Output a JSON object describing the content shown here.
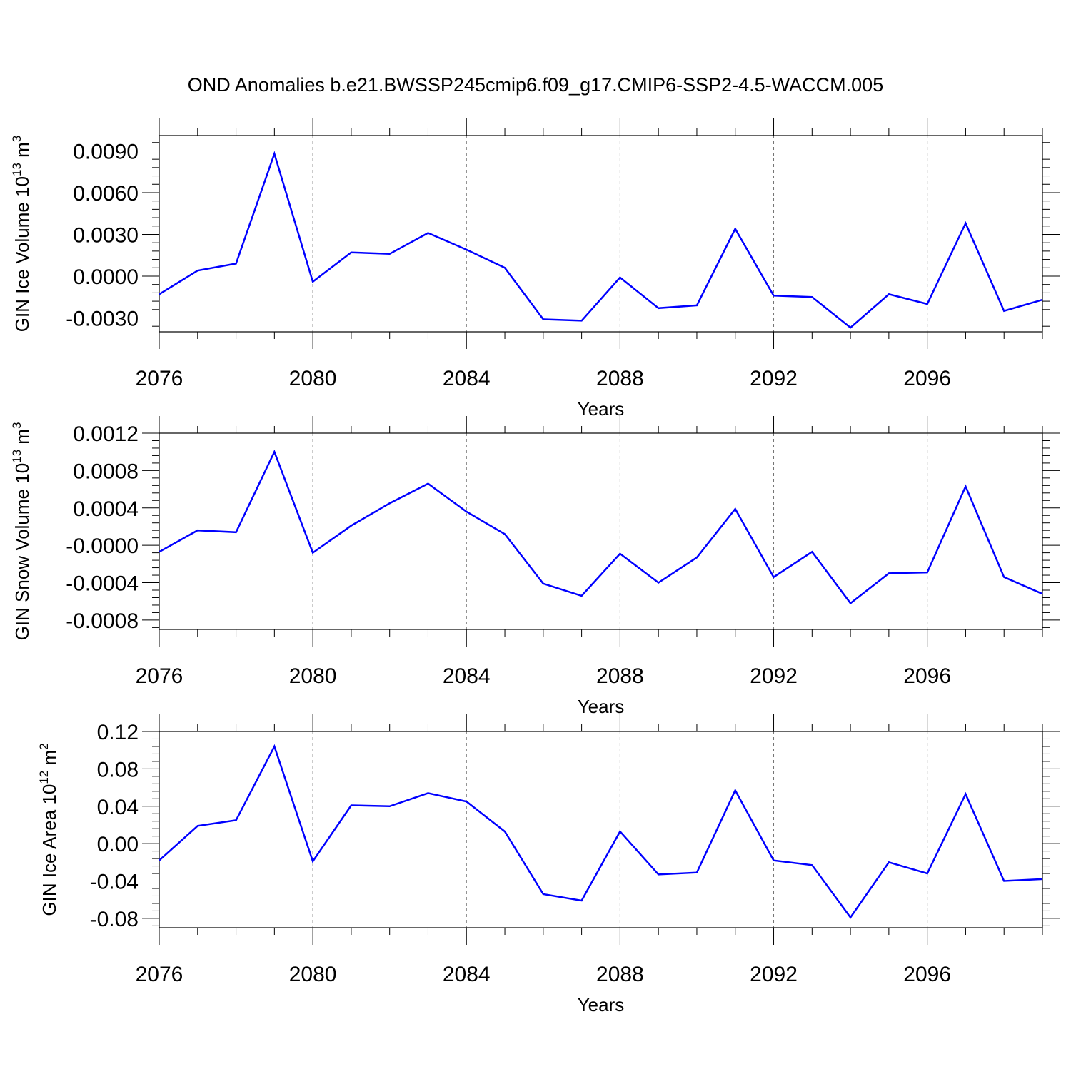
{
  "title": "OND Anomalies b.e21.BWSSP245cmip6.f09_g17.CMIP6-SSP2-4.5-WACCM.005",
  "colors": {
    "line": "#0000ff",
    "axis": "#000000",
    "background": "#ffffff"
  },
  "chart_data": [
    {
      "type": "line",
      "xlabel": "Years",
      "ylabel": {
        "text": "GIN Ice Volume 10",
        "sup": "13",
        "unit": " m",
        "unit_sup": "3"
      },
      "x": [
        2076,
        2077,
        2078,
        2079,
        2080,
        2081,
        2082,
        2083,
        2084,
        2085,
        2086,
        2087,
        2088,
        2089,
        2090,
        2091,
        2092,
        2093,
        2094,
        2095,
        2096,
        2097,
        2098,
        2099
      ],
      "values": [
        -0.0013,
        0.0004,
        0.0009,
        0.0088,
        -0.0004,
        0.0017,
        0.0016,
        0.0031,
        0.0019,
        0.0006,
        -0.0031,
        -0.0032,
        -0.0001,
        -0.0023,
        -0.0021,
        0.0034,
        -0.0014,
        -0.0015,
        -0.0037,
        -0.0013,
        -0.002,
        0.0038,
        -0.0025,
        -0.0017
      ],
      "xlim": [
        2076,
        2099
      ],
      "ylim": [
        -0.004,
        0.0101
      ],
      "xticks": [
        2076,
        2080,
        2084,
        2088,
        2092,
        2096
      ],
      "xtick_labels": [
        "2076",
        "2080",
        "2084",
        "2088",
        "2092",
        "2096"
      ],
      "yticks": [
        -0.003,
        0.0,
        0.003,
        0.006,
        0.009
      ],
      "ytick_labels": [
        "-0.0030",
        "0.0000",
        "0.0030",
        "0.0060",
        "0.0090"
      ],
      "grid": "vertical dashed at major x ticks"
    },
    {
      "type": "line",
      "xlabel": "Years",
      "ylabel": {
        "text": "GIN Snow Volume 10",
        "sup": "13",
        "unit": " m",
        "unit_sup": "3"
      },
      "x": [
        2076,
        2077,
        2078,
        2079,
        2080,
        2081,
        2082,
        2083,
        2084,
        2085,
        2086,
        2087,
        2088,
        2089,
        2090,
        2091,
        2092,
        2093,
        2094,
        2095,
        2096,
        2097,
        2098,
        2099
      ],
      "values": [
        -7e-05,
        0.00016,
        0.00014,
        0.001,
        -8e-05,
        0.00021,
        0.00045,
        0.00066,
        0.00036,
        0.00012,
        -0.00041,
        -0.00054,
        -9e-05,
        -0.0004,
        -0.00013,
        0.00039,
        -0.00034,
        -7e-05,
        -0.00062,
        -0.0003,
        -0.00029,
        0.00063,
        -0.00034,
        -0.00052
      ],
      "xlim": [
        2076,
        2099
      ],
      "ylim": [
        -0.0009,
        0.0012
      ],
      "xticks": [
        2076,
        2080,
        2084,
        2088,
        2092,
        2096
      ],
      "xtick_labels": [
        "2076",
        "2080",
        "2084",
        "2088",
        "2092",
        "2096"
      ],
      "yticks": [
        -0.0008,
        -0.0004,
        0.0,
        0.0004,
        0.0008,
        0.0012
      ],
      "ytick_labels": [
        "-0.0008",
        "-0.0004",
        "-0.0000",
        "0.0004",
        "0.0008",
        "0.0012"
      ],
      "grid": "vertical dashed at major x ticks"
    },
    {
      "type": "line",
      "xlabel": "Years",
      "ylabel": {
        "text": "GIN Ice Area 10",
        "sup": "12",
        "unit": " m",
        "unit_sup": "2"
      },
      "x": [
        2076,
        2077,
        2078,
        2079,
        2080,
        2081,
        2082,
        2083,
        2084,
        2085,
        2086,
        2087,
        2088,
        2089,
        2090,
        2091,
        2092,
        2093,
        2094,
        2095,
        2096,
        2097,
        2098,
        2099
      ],
      "values": [
        -0.018,
        0.019,
        0.025,
        0.104,
        -0.019,
        0.041,
        0.04,
        0.054,
        0.045,
        0.013,
        -0.054,
        -0.061,
        0.013,
        -0.033,
        -0.031,
        0.057,
        -0.018,
        -0.023,
        -0.079,
        -0.02,
        -0.032,
        0.053,
        -0.04,
        -0.038
      ],
      "xlim": [
        2076,
        2099
      ],
      "ylim": [
        -0.09,
        0.12
      ],
      "xticks": [
        2076,
        2080,
        2084,
        2088,
        2092,
        2096
      ],
      "xtick_labels": [
        "2076",
        "2080",
        "2084",
        "2088",
        "2092",
        "2096"
      ],
      "yticks": [
        -0.08,
        -0.04,
        0.0,
        0.04,
        0.08,
        0.12
      ],
      "ytick_labels": [
        "-0.08",
        "-0.04",
        "0.00",
        "0.04",
        "0.08",
        "0.12"
      ],
      "grid": "vertical dashed at major x ticks"
    }
  ]
}
